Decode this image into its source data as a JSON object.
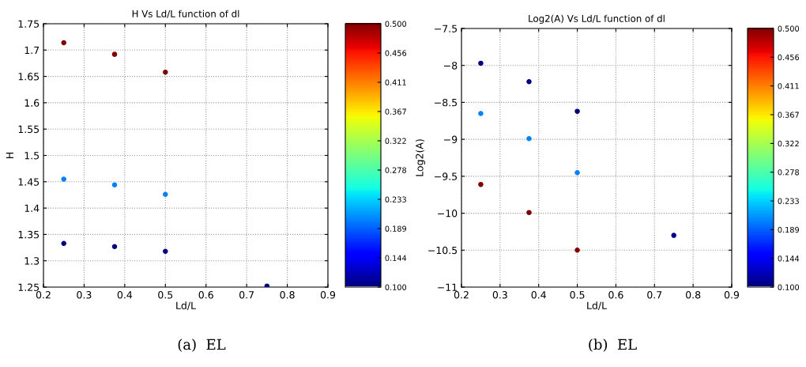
{
  "chart_data": [
    {
      "type": "scatter",
      "title": "H Vs Ld/L function of dl",
      "xlabel": "Ld/L",
      "ylabel": "H",
      "x": [
        0.25,
        0.375,
        0.5,
        0.25,
        0.375,
        0.5,
        0.25,
        0.375,
        0.5,
        0.75
      ],
      "values": [
        1.714,
        1.692,
        1.658,
        1.455,
        1.444,
        1.426,
        1.333,
        1.327,
        1.318,
        1.252
      ],
      "cvalues": [
        0.5,
        0.5,
        0.5,
        0.2,
        0.2,
        0.2,
        0.1,
        0.1,
        0.1,
        0.1
      ],
      "clim": [
        0.1,
        0.5
      ],
      "cticks": [
        {
          "value": 0.1,
          "label": "0.100"
        },
        {
          "value": 0.1444,
          "label": "0.144"
        },
        {
          "value": 0.1889,
          "label": "0.189"
        },
        {
          "value": 0.2333,
          "label": "0.233"
        },
        {
          "value": 0.2778,
          "label": "0.278"
        },
        {
          "value": 0.3222,
          "label": "0.322"
        },
        {
          "value": 0.3667,
          "label": "0.367"
        },
        {
          "value": 0.4111,
          "label": "0.411"
        },
        {
          "value": 0.4556,
          "label": "0.456"
        },
        {
          "value": 0.5,
          "label": "0.500"
        }
      ],
      "xlim": [
        0.2,
        0.9
      ],
      "xticks": [
        0.2,
        0.3,
        0.4,
        0.5,
        0.6,
        0.7,
        0.8,
        0.9
      ],
      "ylim": [
        1.25,
        1.75
      ],
      "yticks": [
        1.25,
        1.3,
        1.35,
        1.4,
        1.45,
        1.5,
        1.55,
        1.6,
        1.65,
        1.7,
        1.75
      ],
      "grid": true,
      "marker": "circle",
      "annotations": [
        "(a)  EL"
      ]
    },
    {
      "type": "scatter",
      "title": "Log2(A) Vs Ld/L function of dl",
      "xlabel": "Ld/L",
      "ylabel": "Log2(A)",
      "x": [
        0.25,
        0.375,
        0.5,
        0.75,
        0.25,
        0.375,
        0.5,
        0.25,
        0.375,
        0.5
      ],
      "values": [
        -7.97,
        -8.22,
        -8.62,
        -10.3,
        -8.65,
        -8.99,
        -9.45,
        -9.61,
        -9.99,
        -10.5
      ],
      "cvalues": [
        0.1,
        0.1,
        0.1,
        0.1,
        0.2,
        0.2,
        0.2,
        0.5,
        0.5,
        0.5
      ],
      "clim": [
        0.1,
        0.5
      ],
      "cticks": [
        {
          "value": 0.1,
          "label": "0.100"
        },
        {
          "value": 0.1444,
          "label": "0.144"
        },
        {
          "value": 0.1889,
          "label": "0.189"
        },
        {
          "value": 0.2333,
          "label": "0.233"
        },
        {
          "value": 0.2778,
          "label": "0.278"
        },
        {
          "value": 0.3222,
          "label": "0.322"
        },
        {
          "value": 0.3667,
          "label": "0.367"
        },
        {
          "value": 0.4111,
          "label": "0.411"
        },
        {
          "value": 0.4556,
          "label": "0.456"
        },
        {
          "value": 0.5,
          "label": "0.500"
        }
      ],
      "xlim": [
        0.2,
        0.9
      ],
      "xticks": [
        0.2,
        0.3,
        0.4,
        0.5,
        0.6,
        0.7,
        0.8,
        0.9
      ],
      "ylim": [
        -11,
        -7.5
      ],
      "yticks": [
        {
          "value": -11,
          "label": "−11"
        },
        {
          "value": -10.5,
          "label": "−10.5"
        },
        {
          "value": -10,
          "label": "−10"
        },
        {
          "value": -9.5,
          "label": "−9.5"
        },
        {
          "value": -9,
          "label": "−9"
        },
        {
          "value": -8.5,
          "label": "−8.5"
        },
        {
          "value": -8,
          "label": "−8"
        },
        {
          "value": -7.5,
          "label": "−7.5"
        }
      ],
      "grid": true,
      "marker": "circle",
      "annotations": [
        "(b)  EL"
      ]
    }
  ]
}
